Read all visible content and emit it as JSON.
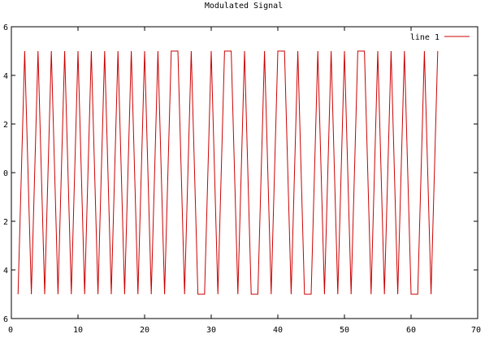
{
  "chart_data": {
    "type": "line",
    "title": "Modulated Signal",
    "xlabel": "",
    "ylabel": "",
    "xlim": [
      0,
      70
    ],
    "ylim": [
      -6,
      6
    ],
    "grid": false,
    "legend_position": "top-right",
    "x_ticks": [
      "0",
      "10",
      "20",
      "30",
      "40",
      "50",
      "60",
      "70"
    ],
    "y_ticks": [
      "6",
      "4",
      "2",
      "0",
      "2",
      "4",
      "6"
    ],
    "series": [
      {
        "name": "line 1",
        "color": "#cc0000",
        "x": [
          1,
          2,
          3,
          4,
          5,
          6,
          7,
          8,
          9,
          10,
          11,
          12,
          13,
          14,
          15,
          16,
          17,
          18,
          19,
          20,
          21,
          22,
          23,
          24,
          25,
          26,
          27,
          28,
          29,
          30,
          31,
          32,
          33,
          34,
          35,
          36,
          37,
          38,
          39,
          40,
          41,
          42,
          43,
          44,
          45,
          46,
          47,
          48,
          49,
          50,
          51,
          52,
          53,
          54,
          55,
          56,
          57,
          58,
          59,
          60,
          61,
          62,
          63,
          64
        ],
        "y": [
          -5,
          5,
          -5,
          5,
          -5,
          5,
          -5,
          5,
          -5,
          5,
          -5,
          5,
          -5,
          5,
          -5,
          5,
          -5,
          5,
          -5,
          5,
          -5,
          5,
          -5,
          5,
          5,
          -5,
          5,
          -5,
          -5,
          5,
          -5,
          5,
          5,
          -5,
          5,
          -5,
          -5,
          5,
          -5,
          5,
          5,
          -5,
          5,
          -5,
          -5,
          5,
          -5,
          5,
          -5,
          5,
          -5,
          5,
          5,
          -5,
          5,
          -5,
          5,
          -5,
          5,
          -5,
          -5,
          5,
          -5,
          5
        ]
      }
    ]
  }
}
